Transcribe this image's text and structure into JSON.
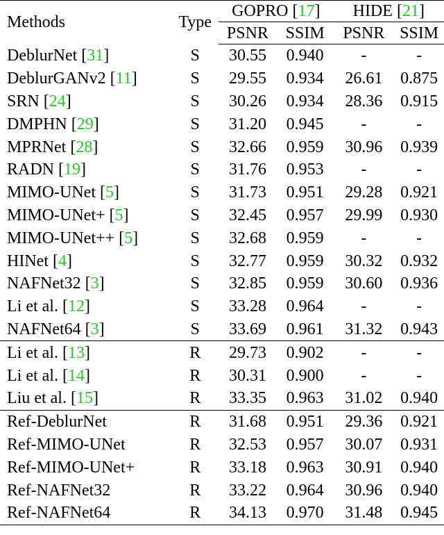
{
  "header": {
    "methods": "Methods",
    "type": "Type",
    "gopro": "GOPRO",
    "gopro_ref": "17",
    "hide": "HIDE",
    "hide_ref": "21",
    "psnr": "PSNR",
    "ssim": "SSIM"
  },
  "colors": {
    "citation": "#22cc22",
    "text": "#000000"
  },
  "rows": [
    {
      "method": "DeblurNet",
      "ref": "31",
      "type": "S",
      "gopro_psnr": "30.55",
      "gopro_ssim": "0.940",
      "hide_psnr": "-",
      "hide_ssim": "-"
    },
    {
      "method": "DeblurGANv2",
      "ref": "11",
      "type": "S",
      "gopro_psnr": "29.55",
      "gopro_ssim": "0.934",
      "hide_psnr": "26.61",
      "hide_ssim": "0.875"
    },
    {
      "method": "SRN",
      "ref": "24",
      "type": "S",
      "gopro_psnr": "30.26",
      "gopro_ssim": "0.934",
      "hide_psnr": "28.36",
      "hide_ssim": "0.915"
    },
    {
      "method": "DMPHN",
      "ref": "29",
      "type": "S",
      "gopro_psnr": "31.20",
      "gopro_ssim": "0.945",
      "hide_psnr": "-",
      "hide_ssim": "-"
    },
    {
      "method": "MPRNet",
      "ref": "28",
      "type": "S",
      "gopro_psnr": "32.66",
      "gopro_ssim": "0.959",
      "hide_psnr": "30.96",
      "hide_ssim": "0.939"
    },
    {
      "method": "RADN",
      "ref": "19",
      "type": "S",
      "gopro_psnr": "31.76",
      "gopro_ssim": "0.953",
      "hide_psnr": "-",
      "hide_ssim": "-"
    },
    {
      "method": "MIMO-UNet",
      "ref": "5",
      "type": "S",
      "gopro_psnr": "31.73",
      "gopro_ssim": "0.951",
      "hide_psnr": "29.28",
      "hide_ssim": "0.921"
    },
    {
      "method": "MIMO-UNet+",
      "ref": "5",
      "type": "S",
      "gopro_psnr": "32.45",
      "gopro_ssim": "0.957",
      "hide_psnr": "29.99",
      "hide_ssim": "0.930"
    },
    {
      "method": "MIMO-UNet++",
      "ref": "5",
      "type": "S",
      "gopro_psnr": "32.68",
      "gopro_ssim": "0.959",
      "hide_psnr": "-",
      "hide_ssim": "-"
    },
    {
      "method": "HINet",
      "ref": "4",
      "type": "S",
      "gopro_psnr": "32.77",
      "gopro_ssim": "0.959",
      "hide_psnr": "30.32",
      "hide_ssim": "0.932"
    },
    {
      "method": "NAFNet32",
      "ref": "3",
      "type": "S",
      "gopro_psnr": "32.85",
      "gopro_ssim": "0.959",
      "hide_psnr": "30.60",
      "hide_ssim": "0.936"
    },
    {
      "method": "Li et al.",
      "ref": "12",
      "type": "S",
      "gopro_psnr": "33.28",
      "gopro_ssim": "0.964",
      "hide_psnr": "-",
      "hide_ssim": "-"
    },
    {
      "method": "NAFNet64",
      "ref": "3",
      "type": "S",
      "gopro_psnr": "33.69",
      "gopro_ssim": "0.961",
      "hide_psnr": "31.32",
      "hide_ssim": "0.943"
    },
    {
      "method": "Li et al.",
      "ref": "13",
      "type": "R",
      "gopro_psnr": "29.73",
      "gopro_ssim": "0.902",
      "hide_psnr": "-",
      "hide_ssim": "-"
    },
    {
      "method": "Li et al.",
      "ref": "14",
      "type": "R",
      "gopro_psnr": "30.31",
      "gopro_ssim": "0.900",
      "hide_psnr": "-",
      "hide_ssim": "-"
    },
    {
      "method": "Liu et al.",
      "ref": "15",
      "type": "R",
      "gopro_psnr": "33.35",
      "gopro_ssim": "0.963",
      "hide_psnr": "31.02",
      "hide_ssim": "0.940"
    },
    {
      "method": "Ref-DeblurNet",
      "ref": "",
      "type": "R",
      "gopro_psnr": "31.68",
      "gopro_ssim": "0.951",
      "hide_psnr": "29.36",
      "hide_ssim": "0.921"
    },
    {
      "method": "Ref-MIMO-UNet",
      "ref": "",
      "type": "R",
      "gopro_psnr": "32.53",
      "gopro_ssim": "0.957",
      "hide_psnr": "30.07",
      "hide_ssim": "0.931"
    },
    {
      "method": "Ref-MIMO-UNet+",
      "ref": "",
      "type": "R",
      "gopro_psnr": "33.18",
      "gopro_ssim": "0.963",
      "hide_psnr": "30.91",
      "hide_ssim": "0.940"
    },
    {
      "method": "Ref-NAFNet32",
      "ref": "",
      "type": "R",
      "gopro_psnr": "33.22",
      "gopro_ssim": "0.964",
      "hide_psnr": "30.96",
      "hide_ssim": "0.940"
    },
    {
      "method": "Ref-NAFNet64",
      "ref": "",
      "type": "R",
      "gopro_psnr": "34.13",
      "gopro_ssim": "0.970",
      "hide_psnr": "31.48",
      "hide_ssim": "0.945"
    }
  ]
}
